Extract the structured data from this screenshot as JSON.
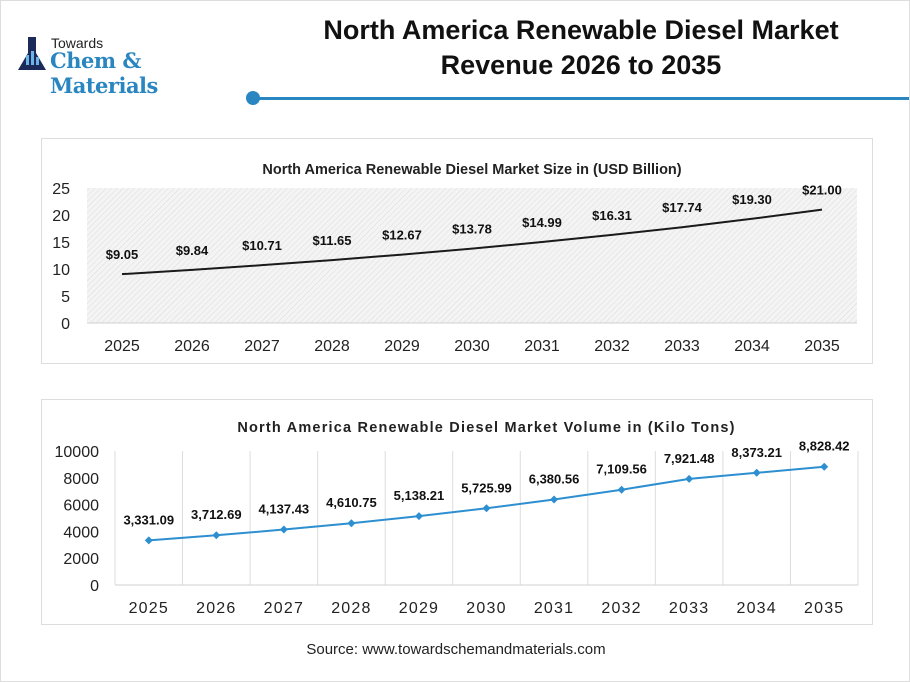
{
  "header": {
    "logo_top": "Towards",
    "logo_brand": "Chem & Materials",
    "title_line1": "North America Renewable Diesel Market",
    "title_line2": "Revenue 2026 to 2035",
    "accent": "#2a86c0"
  },
  "chart_data": [
    {
      "type": "line",
      "title": "North America Renewable Diesel Market Size in (USD Billion)",
      "categories": [
        "2025",
        "2026",
        "2027",
        "2028",
        "2029",
        "2030",
        "2031",
        "2032",
        "2033",
        "2034",
        "2035"
      ],
      "values": [
        9.05,
        9.84,
        10.71,
        11.65,
        12.67,
        13.78,
        14.99,
        16.31,
        17.74,
        19.3,
        21.0
      ],
      "data_labels": [
        "$9.05",
        "$9.84",
        "$10.71",
        "$11.65",
        "$12.67",
        "$13.78",
        "$14.99",
        "$16.31",
        "$17.74",
        "$19.30",
        "$21.00"
      ],
      "yticks": [
        "0",
        "5",
        "10",
        "15",
        "20",
        "25"
      ],
      "ylim": [
        0,
        25
      ],
      "line_color": "#1a1a1a",
      "grid": false
    },
    {
      "type": "line",
      "title": "North America Renewable Diesel Market Volume in (Kilo Tons)",
      "categories": [
        "2025",
        "2026",
        "2027",
        "2028",
        "2029",
        "2030",
        "2031",
        "2032",
        "2033",
        "2034",
        "2035"
      ],
      "values": [
        3331.09,
        3712.69,
        4137.43,
        4610.75,
        5138.21,
        5725.99,
        6380.56,
        7109.56,
        7921.48,
        8373.21,
        8828.42
      ],
      "data_labels": [
        "3,331.09",
        "3,712.69",
        "4,137.43",
        "4,610.75",
        "5,138.21",
        "5,725.99",
        "6,380.56",
        "7,109.56",
        "7,921.48",
        "8,373.21",
        "8,828.42"
      ],
      "yticks": [
        "0",
        "2000",
        "4000",
        "6000",
        "8000",
        "10000"
      ],
      "ylim": [
        0,
        10000
      ],
      "line_color": "#2e8fd0",
      "marker": "diamond",
      "grid": "vertical"
    }
  ],
  "footer": {
    "source": "Source: www.towardschemandmaterials.com"
  }
}
